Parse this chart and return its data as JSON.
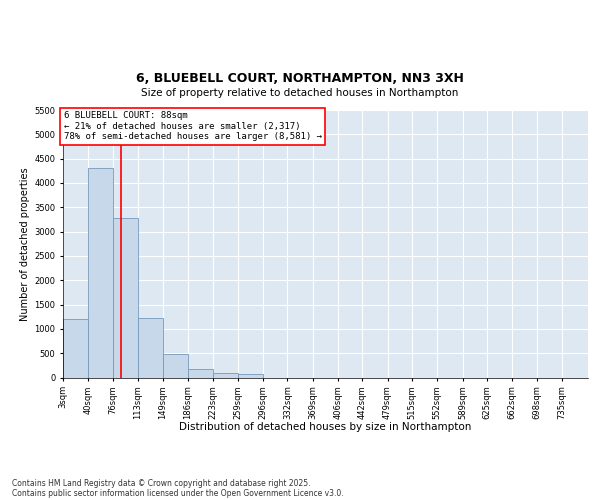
{
  "title_line1": "6, BLUEBELL COURT, NORTHAMPTON, NN3 3XH",
  "title_line2": "Size of property relative to detached houses in Northampton",
  "xlabel": "Distribution of detached houses by size in Northampton",
  "ylabel": "Number of detached properties",
  "bar_color": "#c8d8eb",
  "bar_edge_color": "#7799bb",
  "background_color": "#dde8f2",
  "grid_color": "#ffffff",
  "annotation_text": "6 BLUEBELL COURT: 88sqm\n← 21% of detached houses are smaller (2,317)\n78% of semi-detached houses are larger (8,581) →",
  "red_line_x": 88,
  "categories": [
    "3sqm",
    "40sqm",
    "76sqm",
    "113sqm",
    "149sqm",
    "186sqm",
    "223sqm",
    "259sqm",
    "296sqm",
    "332sqm",
    "369sqm",
    "406sqm",
    "442sqm",
    "479sqm",
    "515sqm",
    "552sqm",
    "589sqm",
    "625sqm",
    "662sqm",
    "698sqm",
    "735sqm"
  ],
  "bin_starts": [
    3,
    40,
    76,
    113,
    149,
    186,
    223,
    259,
    296,
    332,
    369,
    406,
    442,
    479,
    515,
    552,
    589,
    625,
    662,
    698,
    735
  ],
  "bin_width": 37,
  "values": [
    1210,
    4300,
    3270,
    1230,
    490,
    175,
    100,
    70,
    0,
    0,
    0,
    0,
    0,
    0,
    0,
    0,
    0,
    0,
    0,
    0,
    0
  ],
  "ylim_min": 0,
  "ylim_max": 5500,
  "yticks": [
    0,
    500,
    1000,
    1500,
    2000,
    2500,
    3000,
    3500,
    4000,
    4500,
    5000,
    5500
  ],
  "footer_line1": "Contains HM Land Registry data © Crown copyright and database right 2025.",
  "footer_line2": "Contains public sector information licensed under the Open Government Licence v3.0.",
  "title_fontsize": 9,
  "subtitle_fontsize": 7.5,
  "ylabel_fontsize": 7,
  "xlabel_fontsize": 7.5,
  "tick_fontsize": 6,
  "annotation_fontsize": 6.5,
  "footer_fontsize": 5.5
}
